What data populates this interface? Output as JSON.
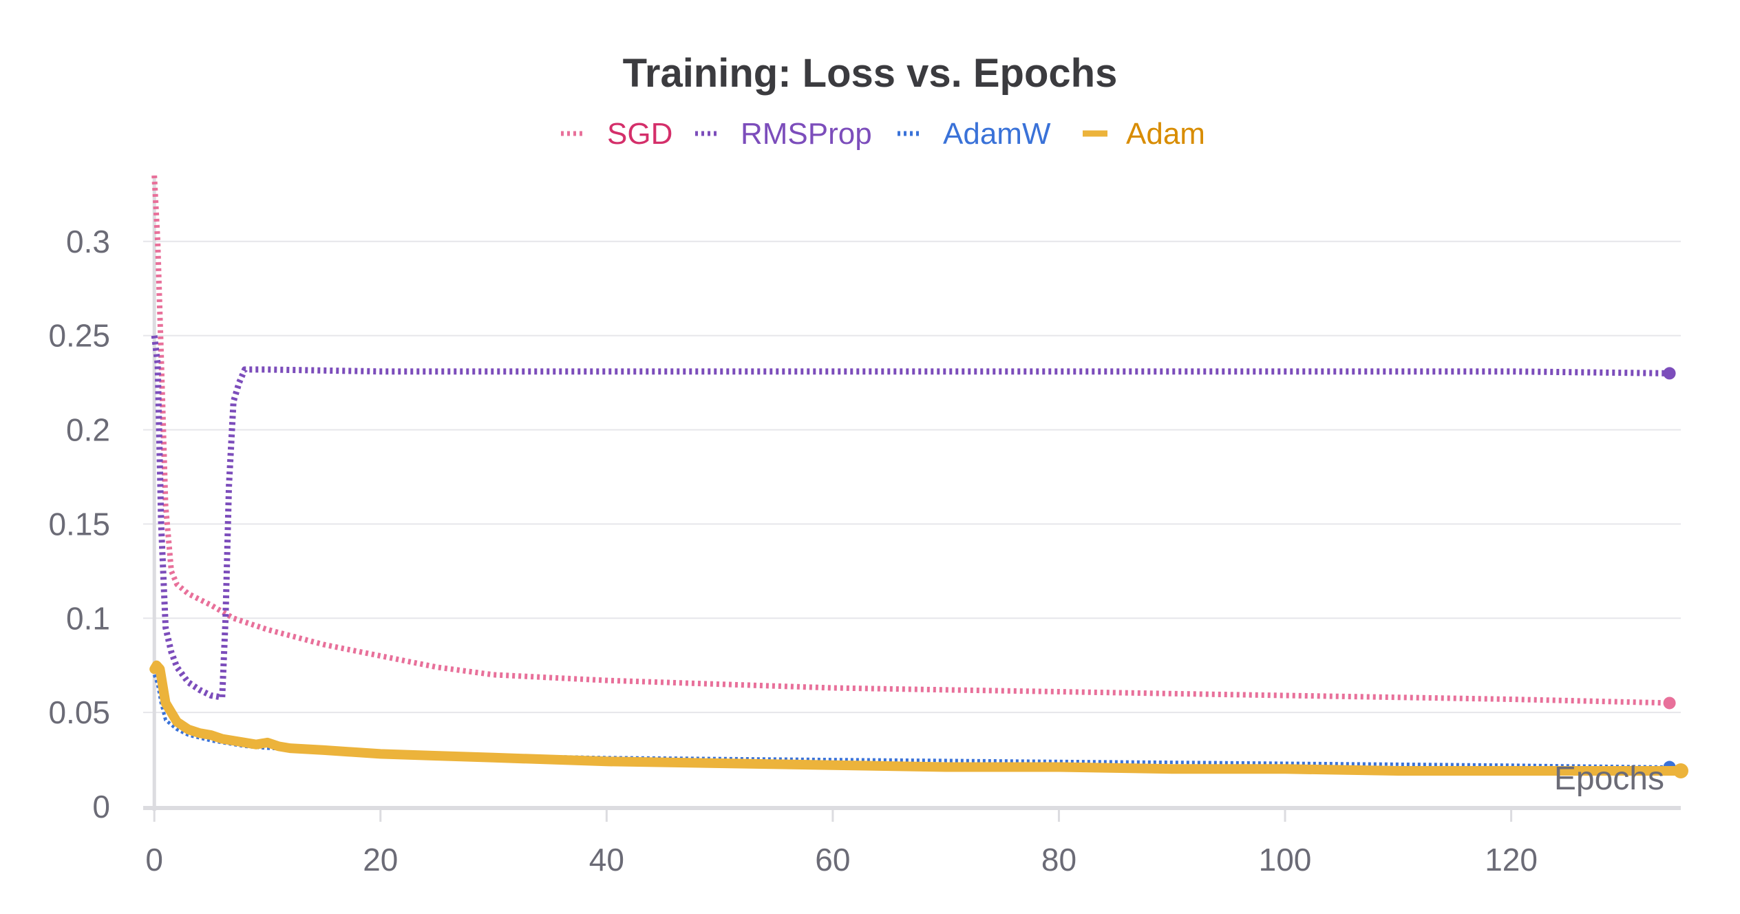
{
  "chart_data": {
    "type": "line",
    "title": "Training: Loss vs. Epochs",
    "xlabel": "Epochs",
    "ylabel": "",
    "xlim": [
      -0.5,
      135
    ],
    "ylim": [
      0,
      0.335
    ],
    "xticks": [
      "0",
      "20",
      "40",
      "60",
      "80",
      "100",
      "120"
    ],
    "yticks": [
      "0",
      "0.05",
      "0.1",
      "0.15",
      "0.2",
      "0.25",
      "0.3"
    ],
    "grid": "horizontal",
    "legend_position": "top-center",
    "series": [
      {
        "name": "SGD",
        "color": "#e8709a",
        "label_color": "#d42f6a",
        "style": "dotted",
        "x": [
          0,
          0.3,
          0.6,
          1,
          1.5,
          2,
          3,
          5,
          7,
          10,
          15,
          20,
          25,
          30,
          40,
          50,
          60,
          70,
          80,
          90,
          100,
          110,
          120,
          134
        ],
        "y": [
          0.335,
          0.3,
          0.24,
          0.16,
          0.125,
          0.118,
          0.113,
          0.107,
          0.1,
          0.094,
          0.086,
          0.08,
          0.074,
          0.07,
          0.067,
          0.065,
          0.063,
          0.062,
          0.061,
          0.06,
          0.059,
          0.058,
          0.057,
          0.055
        ]
      },
      {
        "name": "RMSProp",
        "color": "#7c4dbb",
        "label_color": "#7c4dbb",
        "style": "dotted",
        "x": [
          0,
          0.3,
          0.6,
          1,
          1.5,
          2,
          3,
          4,
          5,
          6,
          6.3,
          6.6,
          7,
          7.5,
          8,
          10,
          20,
          40,
          60,
          80,
          100,
          120,
          134
        ],
        "y": [
          0.25,
          0.235,
          0.15,
          0.095,
          0.082,
          0.074,
          0.066,
          0.062,
          0.059,
          0.058,
          0.1,
          0.17,
          0.215,
          0.225,
          0.232,
          0.232,
          0.231,
          0.231,
          0.231,
          0.231,
          0.231,
          0.231,
          0.23
        ]
      },
      {
        "name": "AdamW",
        "color": "#3a72d8",
        "label_color": "#3a72d8",
        "style": "dotted",
        "x": [
          0,
          0.3,
          0.6,
          1,
          2,
          3,
          5,
          8,
          10,
          15,
          20,
          30,
          40,
          60,
          80,
          100,
          120,
          134
        ],
        "y": [
          0.07,
          0.065,
          0.055,
          0.046,
          0.041,
          0.038,
          0.035,
          0.032,
          0.031,
          0.03,
          0.029,
          0.027,
          0.026,
          0.025,
          0.024,
          0.023,
          0.022,
          0.021
        ]
      },
      {
        "name": "Adam",
        "color": "#ecb33b",
        "label_color": "#d88c00",
        "style": "solid",
        "x": [
          0,
          0.2,
          0.5,
          1,
          2,
          3,
          4,
          5,
          6,
          8,
          9,
          10,
          11,
          12,
          15,
          20,
          25,
          30,
          40,
          50,
          60,
          70,
          80,
          90,
          100,
          110,
          120,
          135
        ],
        "y": [
          0.073,
          0.075,
          0.073,
          0.055,
          0.045,
          0.041,
          0.039,
          0.038,
          0.036,
          0.034,
          0.033,
          0.034,
          0.032,
          0.031,
          0.03,
          0.028,
          0.027,
          0.026,
          0.024,
          0.023,
          0.022,
          0.021,
          0.021,
          0.02,
          0.02,
          0.019,
          0.019,
          0.019
        ]
      }
    ]
  }
}
